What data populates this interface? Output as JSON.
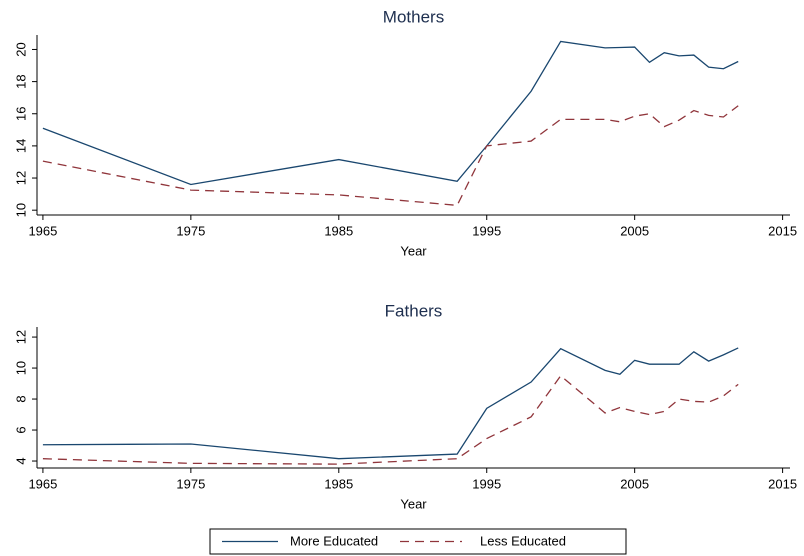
{
  "chart_data": [
    {
      "type": "line",
      "title": "Mothers",
      "x_label": "Year",
      "x": [
        1965,
        1975,
        1985,
        1993,
        1995,
        1998,
        2000,
        2003,
        2004,
        2005,
        2006,
        2007,
        2008,
        2009,
        2010,
        2011,
        2012
      ],
      "series": [
        {
          "name": "More Educated",
          "color": "#1a476f",
          "dash": "solid",
          "values": [
            15.1,
            11.6,
            13.15,
            11.8,
            14.0,
            17.4,
            20.5,
            20.1,
            20.12,
            20.15,
            19.2,
            19.8,
            19.6,
            19.65,
            18.9,
            18.8,
            19.25
          ]
        },
        {
          "name": "Less Educated",
          "color": "#90353b",
          "dash": "dashed",
          "values": [
            13.05,
            11.25,
            10.95,
            10.3,
            14.0,
            14.3,
            15.65,
            15.65,
            15.5,
            15.85,
            16.0,
            15.2,
            15.6,
            16.2,
            15.9,
            15.8,
            16.5
          ]
        }
      ],
      "xlim": [
        1964.6,
        2015.5
      ],
      "xticks": [
        1965,
        1975,
        1985,
        1995,
        2005,
        2015
      ],
      "ylim": [
        9.7,
        20.9
      ],
      "yticks": [
        10,
        12,
        14,
        16,
        18,
        20
      ]
    },
    {
      "type": "line",
      "title": "Fathers",
      "x_label": "Year",
      "x": [
        1965,
        1975,
        1985,
        1993,
        1995,
        1998,
        2000,
        2003,
        2004,
        2005,
        2006,
        2007,
        2008,
        2009,
        2010,
        2011,
        2012
      ],
      "series": [
        {
          "color": "#1a476f",
          "dash": "solid",
          "values": [
            5.05,
            5.1,
            4.15,
            4.45,
            7.4,
            9.1,
            11.25,
            9.85,
            9.6,
            10.5,
            10.25,
            10.25,
            10.25,
            11.05,
            10.45,
            10.85,
            11.3
          ]
        },
        {
          "color": "#90353b",
          "dash": "dashed",
          "values": [
            4.15,
            3.85,
            3.8,
            4.15,
            5.45,
            6.85,
            9.5,
            7.1,
            7.45,
            7.2,
            7.0,
            7.2,
            8.0,
            7.85,
            7.8,
            8.2,
            8.95
          ]
        }
      ],
      "xlim": [
        1964.6,
        2015.5
      ],
      "xticks": [
        1965,
        1975,
        1985,
        1995,
        2005,
        2015
      ],
      "ylim": [
        3.55,
        12.65
      ],
      "yticks": [
        4,
        6,
        8,
        10,
        12
      ]
    }
  ]
}
